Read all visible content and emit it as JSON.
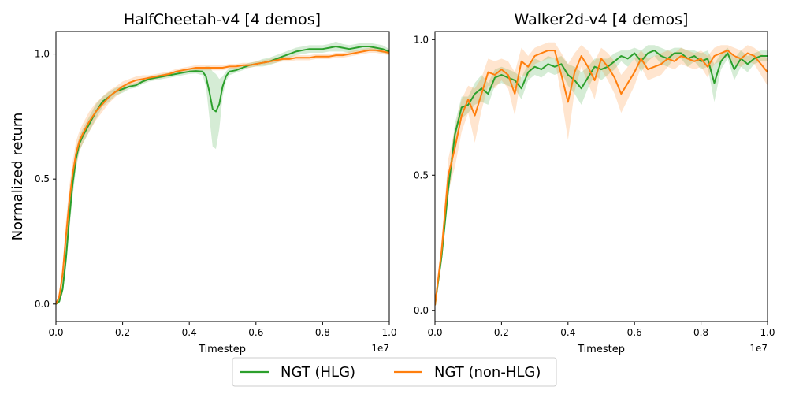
{
  "chart_data": [
    {
      "type": "line",
      "title": "HalfCheetah-v4 [4 demos]",
      "xlabel": "Timestep",
      "ylabel": "Normalized return",
      "x_offset_label": "1e7",
      "xlim": [
        0,
        1.0
      ],
      "ylim": [
        -0.07,
        1.09
      ],
      "xticks": [
        0,
        0.2,
        0.4,
        0.6,
        0.8,
        1.0
      ],
      "xtick_labels": [
        "0.0",
        "0.2",
        "0.4",
        "0.6",
        "0.8",
        "1.0"
      ],
      "yticks": [
        0.0,
        0.5,
        1.0
      ],
      "ytick_labels": [
        "0.0",
        "0.5",
        "1.0"
      ],
      "series": [
        {
          "name": "NGT (HLG)",
          "color": "#2ca02c",
          "x": [
            0,
            0.01,
            0.02,
            0.03,
            0.04,
            0.05,
            0.06,
            0.07,
            0.08,
            0.1,
            0.12,
            0.14,
            0.16,
            0.18,
            0.2,
            0.22,
            0.24,
            0.26,
            0.28,
            0.3,
            0.32,
            0.34,
            0.36,
            0.38,
            0.4,
            0.42,
            0.44,
            0.45,
            0.46,
            0.47,
            0.48,
            0.49,
            0.5,
            0.51,
            0.52,
            0.54,
            0.56,
            0.58,
            0.6,
            0.62,
            0.64,
            0.66,
            0.68,
            0.7,
            0.72,
            0.74,
            0.76,
            0.78,
            0.8,
            0.82,
            0.84,
            0.86,
            0.88,
            0.9,
            0.92,
            0.94,
            0.96,
            0.98,
            1.0
          ],
          "y": [
            0.0,
            0.01,
            0.06,
            0.18,
            0.34,
            0.48,
            0.58,
            0.64,
            0.67,
            0.72,
            0.77,
            0.81,
            0.83,
            0.85,
            0.86,
            0.87,
            0.875,
            0.89,
            0.9,
            0.905,
            0.91,
            0.915,
            0.92,
            0.925,
            0.93,
            0.932,
            0.93,
            0.91,
            0.85,
            0.78,
            0.77,
            0.8,
            0.87,
            0.91,
            0.93,
            0.935,
            0.945,
            0.955,
            0.96,
            0.965,
            0.97,
            0.98,
            0.99,
            1.0,
            1.01,
            1.015,
            1.02,
            1.02,
            1.02,
            1.025,
            1.03,
            1.025,
            1.02,
            1.025,
            1.03,
            1.03,
            1.025,
            1.02,
            1.01
          ],
          "band_halfwidth": [
            0,
            0.005,
            0.02,
            0.04,
            0.05,
            0.05,
            0.04,
            0.03,
            0.03,
            0.03,
            0.03,
            0.02,
            0.02,
            0.015,
            0.015,
            0.01,
            0.01,
            0.01,
            0.01,
            0.01,
            0.01,
            0.01,
            0.01,
            0.01,
            0.01,
            0.01,
            0.015,
            0.04,
            0.1,
            0.15,
            0.15,
            0.1,
            0.04,
            0.02,
            0.015,
            0.01,
            0.01,
            0.01,
            0.01,
            0.015,
            0.015,
            0.015,
            0.015,
            0.015,
            0.015,
            0.015,
            0.015,
            0.015,
            0.015,
            0.015,
            0.02,
            0.015,
            0.015,
            0.015,
            0.015,
            0.015,
            0.015,
            0.015,
            0.01
          ]
        },
        {
          "name": "NGT (non-HLG)",
          "color": "#ff7f0e",
          "x": [
            0,
            0.01,
            0.02,
            0.03,
            0.04,
            0.05,
            0.06,
            0.07,
            0.08,
            0.1,
            0.12,
            0.14,
            0.16,
            0.18,
            0.2,
            0.22,
            0.24,
            0.26,
            0.28,
            0.3,
            0.32,
            0.34,
            0.36,
            0.38,
            0.4,
            0.42,
            0.44,
            0.46,
            0.48,
            0.5,
            0.52,
            0.54,
            0.56,
            0.58,
            0.6,
            0.62,
            0.64,
            0.66,
            0.68,
            0.7,
            0.72,
            0.74,
            0.76,
            0.78,
            0.8,
            0.82,
            0.84,
            0.86,
            0.88,
            0.9,
            0.92,
            0.94,
            0.96,
            0.98,
            1.0
          ],
          "y": [
            0.0,
            0.03,
            0.12,
            0.27,
            0.41,
            0.52,
            0.6,
            0.65,
            0.68,
            0.73,
            0.77,
            0.8,
            0.83,
            0.85,
            0.87,
            0.885,
            0.895,
            0.9,
            0.905,
            0.91,
            0.915,
            0.92,
            0.93,
            0.935,
            0.94,
            0.945,
            0.945,
            0.945,
            0.945,
            0.945,
            0.95,
            0.95,
            0.955,
            0.955,
            0.96,
            0.965,
            0.97,
            0.975,
            0.98,
            0.98,
            0.985,
            0.985,
            0.985,
            0.99,
            0.99,
            0.99,
            0.995,
            0.995,
            1.0,
            1.005,
            1.01,
            1.015,
            1.015,
            1.01,
            1.005
          ],
          "band_halfwidth": [
            0,
            0.02,
            0.04,
            0.06,
            0.06,
            0.05,
            0.05,
            0.04,
            0.04,
            0.04,
            0.035,
            0.03,
            0.025,
            0.02,
            0.02,
            0.015,
            0.015,
            0.015,
            0.01,
            0.01,
            0.01,
            0.01,
            0.01,
            0.01,
            0.01,
            0.01,
            0.01,
            0.01,
            0.01,
            0.01,
            0.01,
            0.01,
            0.01,
            0.01,
            0.01,
            0.01,
            0.01,
            0.01,
            0.01,
            0.01,
            0.01,
            0.01,
            0.01,
            0.01,
            0.01,
            0.01,
            0.01,
            0.01,
            0.01,
            0.01,
            0.01,
            0.01,
            0.01,
            0.01,
            0.01
          ]
        }
      ]
    },
    {
      "type": "line",
      "title": "Walker2d-v4 [4 demos]",
      "xlabel": "Timestep",
      "ylabel": "",
      "x_offset_label": "1e7",
      "xlim": [
        0,
        1.0
      ],
      "ylim": [
        -0.04,
        1.03
      ],
      "xticks": [
        0,
        0.2,
        0.4,
        0.6,
        0.8,
        1.0
      ],
      "xtick_labels": [
        "0.0",
        "0.2",
        "0.4",
        "0.6",
        "0.8",
        "1.0"
      ],
      "yticks": [
        0.0,
        0.5,
        1.0
      ],
      "ytick_labels": [
        "0.0",
        "0.5",
        "1.0"
      ],
      "series": [
        {
          "name": "NGT (HLG)",
          "color": "#2ca02c",
          "x": [
            0,
            0.02,
            0.04,
            0.06,
            0.08,
            0.1,
            0.12,
            0.14,
            0.16,
            0.18,
            0.2,
            0.22,
            0.24,
            0.26,
            0.28,
            0.3,
            0.32,
            0.34,
            0.36,
            0.38,
            0.4,
            0.42,
            0.44,
            0.46,
            0.48,
            0.5,
            0.52,
            0.54,
            0.56,
            0.58,
            0.6,
            0.62,
            0.64,
            0.66,
            0.68,
            0.7,
            0.72,
            0.74,
            0.76,
            0.78,
            0.8,
            0.82,
            0.84,
            0.86,
            0.88,
            0.9,
            0.92,
            0.94,
            0.96,
            0.98,
            1.0
          ],
          "y": [
            0.02,
            0.2,
            0.45,
            0.65,
            0.75,
            0.76,
            0.8,
            0.82,
            0.8,
            0.86,
            0.87,
            0.86,
            0.85,
            0.82,
            0.88,
            0.9,
            0.89,
            0.91,
            0.9,
            0.91,
            0.87,
            0.85,
            0.82,
            0.86,
            0.9,
            0.89,
            0.9,
            0.92,
            0.94,
            0.93,
            0.95,
            0.92,
            0.95,
            0.96,
            0.94,
            0.93,
            0.95,
            0.95,
            0.93,
            0.94,
            0.92,
            0.93,
            0.84,
            0.92,
            0.95,
            0.89,
            0.93,
            0.91,
            0.93,
            0.94,
            0.94
          ],
          "band_halfwidth": [
            0.01,
            0.03,
            0.04,
            0.04,
            0.04,
            0.03,
            0.04,
            0.05,
            0.04,
            0.03,
            0.03,
            0.03,
            0.03,
            0.04,
            0.03,
            0.03,
            0.03,
            0.03,
            0.03,
            0.03,
            0.04,
            0.05,
            0.06,
            0.04,
            0.03,
            0.04,
            0.03,
            0.03,
            0.02,
            0.03,
            0.02,
            0.04,
            0.03,
            0.02,
            0.03,
            0.03,
            0.02,
            0.02,
            0.03,
            0.02,
            0.03,
            0.03,
            0.07,
            0.03,
            0.02,
            0.04,
            0.03,
            0.03,
            0.02,
            0.02,
            0.02
          ]
        },
        {
          "name": "NGT (non-HLG)",
          "color": "#ff7f0e",
          "x": [
            0,
            0.02,
            0.04,
            0.06,
            0.08,
            0.1,
            0.12,
            0.14,
            0.16,
            0.18,
            0.2,
            0.22,
            0.24,
            0.26,
            0.28,
            0.3,
            0.32,
            0.34,
            0.36,
            0.38,
            0.4,
            0.42,
            0.44,
            0.46,
            0.48,
            0.5,
            0.52,
            0.54,
            0.56,
            0.58,
            0.6,
            0.62,
            0.64,
            0.66,
            0.68,
            0.7,
            0.72,
            0.74,
            0.76,
            0.78,
            0.8,
            0.82,
            0.84,
            0.86,
            0.88,
            0.9,
            0.92,
            0.94,
            0.96,
            0.98,
            1.0
          ],
          "y": [
            0.02,
            0.22,
            0.5,
            0.6,
            0.72,
            0.78,
            0.72,
            0.8,
            0.88,
            0.87,
            0.89,
            0.87,
            0.8,
            0.92,
            0.9,
            0.94,
            0.95,
            0.96,
            0.96,
            0.87,
            0.77,
            0.88,
            0.94,
            0.9,
            0.85,
            0.93,
            0.9,
            0.86,
            0.8,
            0.84,
            0.88,
            0.93,
            0.89,
            0.9,
            0.91,
            0.93,
            0.92,
            0.94,
            0.93,
            0.92,
            0.93,
            0.9,
            0.94,
            0.95,
            0.96,
            0.94,
            0.93,
            0.95,
            0.94,
            0.91,
            0.88
          ],
          "band_halfwidth": [
            0.01,
            0.04,
            0.06,
            0.07,
            0.06,
            0.05,
            0.1,
            0.06,
            0.05,
            0.05,
            0.04,
            0.05,
            0.08,
            0.05,
            0.04,
            0.03,
            0.03,
            0.03,
            0.03,
            0.08,
            0.14,
            0.07,
            0.04,
            0.06,
            0.07,
            0.04,
            0.05,
            0.06,
            0.07,
            0.06,
            0.05,
            0.03,
            0.04,
            0.04,
            0.04,
            0.03,
            0.03,
            0.03,
            0.03,
            0.03,
            0.03,
            0.04,
            0.03,
            0.03,
            0.02,
            0.03,
            0.03,
            0.03,
            0.03,
            0.04,
            0.05
          ]
        }
      ]
    }
  ],
  "legend": {
    "items": [
      {
        "label": "NGT (HLG)",
        "color": "#2ca02c"
      },
      {
        "label": "NGT (non-HLG)",
        "color": "#ff7f0e"
      }
    ]
  }
}
